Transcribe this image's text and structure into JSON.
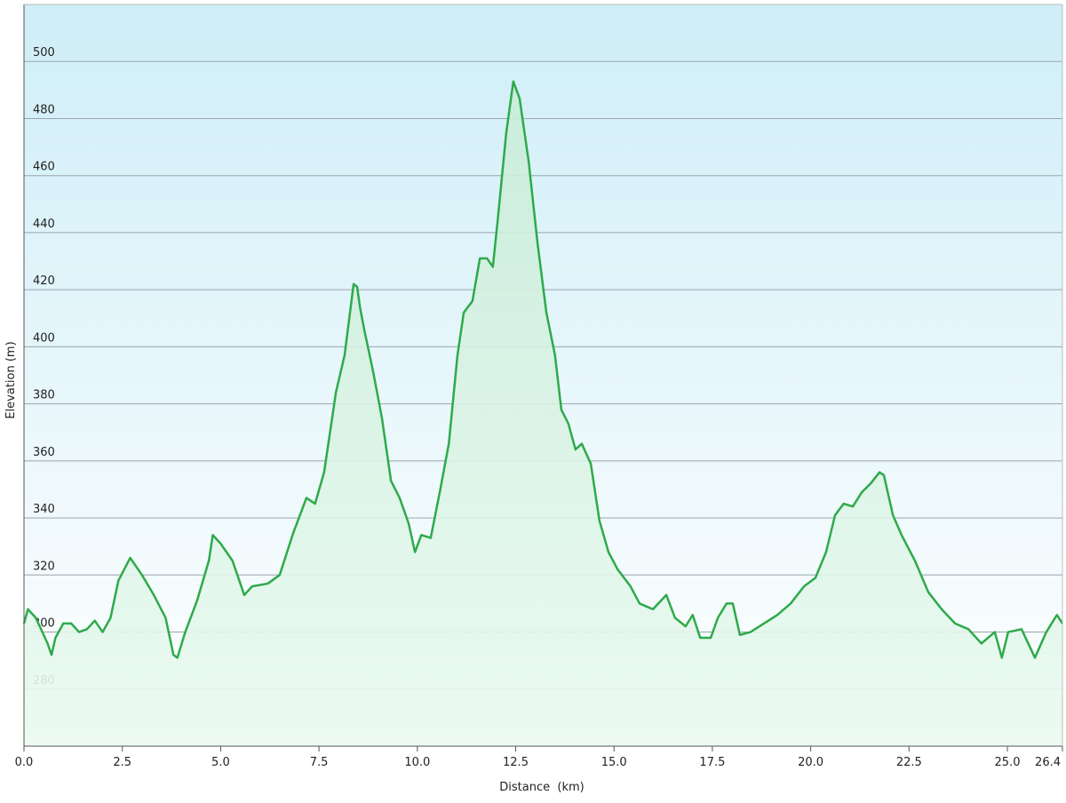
{
  "chart_data": {
    "type": "area",
    "x_label": "Distance  (km)",
    "y_label": "Elevation (m)",
    "color": "#2eaa4a",
    "xlim": [
      0,
      26.4
    ],
    "ylim": [
      260,
      520
    ],
    "xticks": [
      {
        "value": 0,
        "label": "0.0"
      },
      2.5,
      {
        "value": 5,
        "label": "5.0"
      },
      7.5,
      {
        "value": 10,
        "label": "10.0"
      },
      12.5,
      {
        "value": 15,
        "label": "15.0"
      },
      17.5,
      {
        "value": 20,
        "label": "20.0"
      },
      22.5,
      {
        "value": 25,
        "label": "25.0"
      },
      26.4
    ],
    "yticks": [
      280,
      300,
      320,
      340,
      360,
      380,
      400,
      420,
      440,
      460,
      480,
      500
    ],
    "grid": true,
    "x": [
      0,
      0.1,
      0.3,
      0.6,
      0.7,
      0.8,
      1.0,
      1.2,
      1.4,
      1.6,
      1.8,
      2.0,
      2.2,
      2.4,
      2.7,
      3.0,
      3.3,
      3.6,
      3.8,
      3.9,
      4.1,
      4.4,
      4.7,
      4.8,
      5.0,
      5.3,
      5.6,
      5.8,
      6.2,
      6.5,
      6.84,
      7.18,
      7.4,
      7.63,
      7.93,
      8.15,
      8.38,
      8.47,
      8.54,
      8.65,
      8.88,
      9.1,
      9.33,
      9.55,
      9.78,
      9.94,
      10.1,
      10.34,
      10.57,
      10.8,
      11.02,
      11.18,
      11.4,
      11.59,
      11.77,
      11.92,
      12.04,
      12.26,
      12.44,
      12.6,
      12.83,
      13.05,
      13.28,
      13.5,
      13.66,
      13.84,
      14.02,
      14.18,
      14.41,
      14.63,
      14.86,
      15.09,
      15.42,
      15.65,
      15.99,
      16.33,
      16.55,
      16.82,
      17.0,
      17.19,
      17.46,
      17.64,
      17.86,
      18.02,
      18.2,
      18.47,
      18.81,
      19.15,
      19.49,
      19.83,
      20.12,
      20.39,
      20.62,
      20.84,
      21.07,
      21.3,
      21.52,
      21.75,
      21.86,
      22.09,
      22.31,
      22.65,
      22.99,
      23.33,
      23.67,
      24.01,
      24.34,
      24.68,
      24.86,
      25.02,
      25.36,
      25.7,
      25.99,
      26.26,
      26.4
    ],
    "values": [
      303,
      308,
      305,
      296,
      292,
      298,
      303,
      303,
      300,
      301,
      304,
      300,
      305,
      318,
      326,
      320,
      313,
      305,
      292,
      291,
      300,
      311,
      325,
      334,
      331,
      325,
      313,
      316,
      317,
      320,
      334.5,
      347,
      345,
      356,
      384,
      397,
      422,
      421,
      414,
      406,
      391,
      375,
      353,
      347,
      338,
      328,
      334,
      333,
      349,
      366,
      397,
      412,
      416,
      431,
      431,
      428,
      444,
      475,
      493,
      487,
      465,
      437,
      412,
      397,
      378,
      373,
      364,
      366,
      359,
      339,
      328,
      322,
      316,
      310,
      308,
      313,
      305,
      302,
      306,
      298,
      298,
      305,
      310,
      310,
      299,
      300,
      303,
      306,
      310,
      316,
      319,
      328,
      341,
      345,
      344,
      349,
      352,
      356,
      355,
      341,
      334,
      325,
      314,
      308,
      303,
      301,
      296,
      300,
      291,
      300,
      301,
      291,
      300,
      306,
      303
    ]
  }
}
